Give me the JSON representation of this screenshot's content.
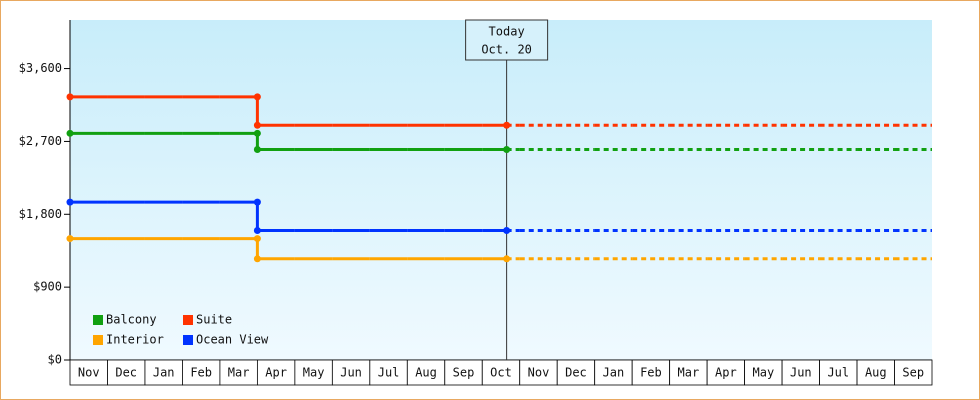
{
  "chart_data": {
    "type": "step-line",
    "categories": [
      "Nov",
      "Dec",
      "Jan",
      "Feb",
      "Mar",
      "Apr",
      "May",
      "Jun",
      "Jul",
      "Aug",
      "Sep",
      "Oct",
      "Nov",
      "Dec",
      "Jan",
      "Feb",
      "Mar",
      "Apr",
      "May",
      "Jun",
      "Jul",
      "Aug",
      "Sep"
    ],
    "series": [
      {
        "name": "Balcony",
        "color": "#11a011",
        "values": [
          2800,
          2800,
          2800,
          2800,
          2800,
          2600,
          2600,
          2600,
          2600,
          2600,
          2600,
          2600,
          null,
          null,
          null,
          null,
          null,
          null,
          null,
          null,
          null,
          null,
          null
        ],
        "projected": [
          null,
          null,
          null,
          null,
          null,
          null,
          null,
          null,
          null,
          null,
          null,
          2600,
          2600,
          2600,
          2600,
          2600,
          2600,
          2600,
          2600,
          2600,
          2600,
          2600,
          2600
        ]
      },
      {
        "name": "Suite",
        "color": "#ff3300",
        "values": [
          3250,
          3250,
          3250,
          3250,
          3250,
          2900,
          2900,
          2900,
          2900,
          2900,
          2900,
          2900,
          null,
          null,
          null,
          null,
          null,
          null,
          null,
          null,
          null,
          null,
          null
        ],
        "projected": [
          null,
          null,
          null,
          null,
          null,
          null,
          null,
          null,
          null,
          null,
          null,
          2900,
          2900,
          2900,
          2900,
          2900,
          2900,
          2900,
          2900,
          2900,
          2900,
          2900,
          2900
        ]
      },
      {
        "name": "Interior",
        "color": "#ffa500",
        "values": [
          1500,
          1500,
          1500,
          1500,
          1500,
          1250,
          1250,
          1250,
          1250,
          1250,
          1250,
          1250,
          null,
          null,
          null,
          null,
          null,
          null,
          null,
          null,
          null,
          null,
          null
        ],
        "projected": [
          null,
          null,
          null,
          null,
          null,
          null,
          null,
          null,
          null,
          null,
          null,
          1250,
          1250,
          1250,
          1250,
          1250,
          1250,
          1250,
          1250,
          1250,
          1250,
          1250,
          1250
        ]
      },
      {
        "name": "Ocean View",
        "color": "#0033ff",
        "values": [
          1950,
          1950,
          1950,
          1950,
          1950,
          1600,
          1600,
          1600,
          1600,
          1600,
          1600,
          1600,
          null,
          null,
          null,
          null,
          null,
          null,
          null,
          null,
          null,
          null,
          null
        ],
        "projected": [
          null,
          null,
          null,
          null,
          null,
          null,
          null,
          null,
          null,
          null,
          null,
          1600,
          1600,
          1600,
          1600,
          1600,
          1600,
          1600,
          1600,
          1600,
          1600,
          1600,
          1600
        ]
      }
    ],
    "annotation": {
      "label": "Today",
      "date": "Oct. 20"
    },
    "ylim": [
      0,
      4200
    ],
    "yticks": [
      {
        "value": 0,
        "label": "$0"
      },
      {
        "value": 900,
        "label": "$900"
      },
      {
        "value": 1800,
        "label": "$1,800"
      },
      {
        "value": 2700,
        "label": "$2,700"
      },
      {
        "value": 3600,
        "label": "$3,600"
      }
    ],
    "grid": false,
    "legend": "bottom-left"
  }
}
